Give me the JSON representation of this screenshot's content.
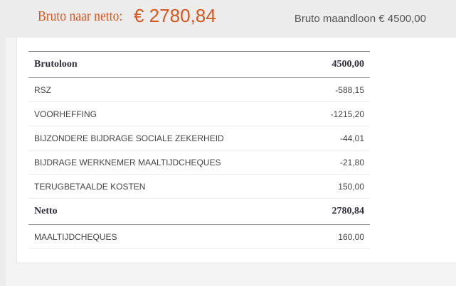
{
  "header": {
    "title": "Bruto naar netto:",
    "amount": "€ 2780,84",
    "gross_monthly": "Bruto maandloon € 4500,00"
  },
  "table": {
    "rows": [
      {
        "label": "Brutoloon",
        "value": "4500,00",
        "major": true
      },
      {
        "label": "RSZ",
        "value": "-588,15",
        "major": false
      },
      {
        "label": "VOORHEFFING",
        "value": "-1215,20",
        "major": false
      },
      {
        "label": "BIJZONDERE BIJDRAGE SOCIALE ZEKERHEID",
        "value": "-44,01",
        "major": false
      },
      {
        "label": "BIJDRAGE WERKNEMER MAALTIJDCHEQUES",
        "value": "-21,80",
        "major": false
      },
      {
        "label": "TERUGBETAALDE KOSTEN",
        "value": "150,00",
        "major": false
      },
      {
        "label": "Netto",
        "value": "2780,84",
        "major": true
      },
      {
        "label": "MAALTIJDCHEQUES",
        "value": "160,00",
        "major": false
      }
    ]
  },
  "colors": {
    "accent": "#d4581f",
    "header_bg": "#ececec",
    "text": "#444444"
  }
}
